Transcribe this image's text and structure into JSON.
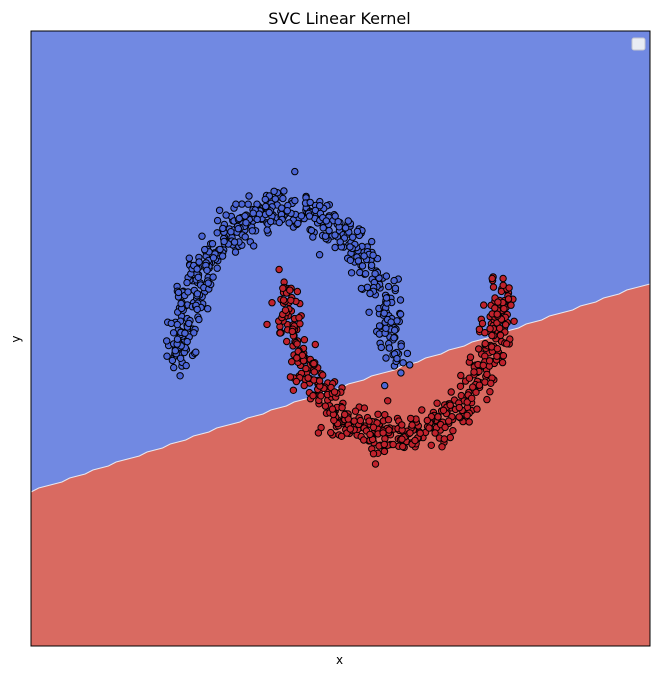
{
  "chart_data": {
    "type": "scatter",
    "title": "SVC Linear Kernel",
    "xlabel": "x",
    "ylabel": "y",
    "xlim": [
      -2.4,
      3.4
    ],
    "ylim": [
      -1.9,
      2.2
    ],
    "xticks": [],
    "yticks": [],
    "grid": false,
    "legend": {
      "location": "top-right",
      "entries": []
    },
    "decision_boundary": {
      "kernel": "linear",
      "line": {
        "x0": -2.4,
        "y0": -0.87,
        "x1": 3.4,
        "y1": 0.52
      }
    },
    "colors": {
      "region_upper": "#7189e2",
      "region_lower": "#d96a61",
      "class_0": "#4c66d6",
      "class_1": "#c0222c",
      "marker_edge": "#000000"
    },
    "series": [
      {
        "class": 0,
        "shape": "upper-moon",
        "arc_center": [
          0.0,
          0.0
        ],
        "radius": 1.0,
        "angle_range_deg": [
          0,
          180
        ],
        "noise_sd": 0.07,
        "n_points": 500
      },
      {
        "class": 1,
        "shape": "lower-moon",
        "arc_center": [
          1.0,
          0.5
        ],
        "radius": 1.0,
        "angle_range_deg": [
          180,
          360
        ],
        "noise_sd": 0.07,
        "n_points": 500
      }
    ]
  }
}
